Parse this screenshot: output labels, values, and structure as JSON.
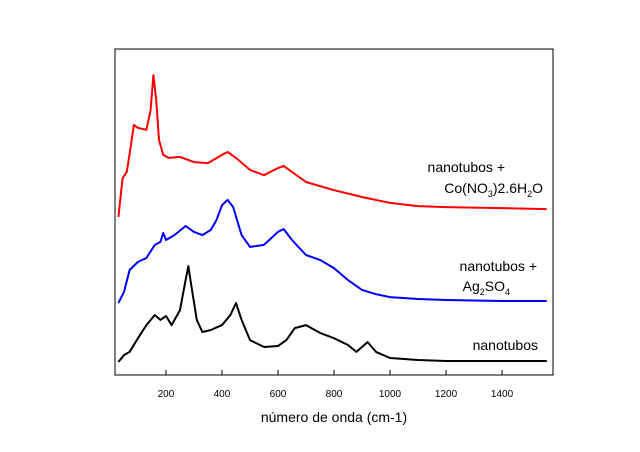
{
  "chart_data": {
    "type": "line",
    "xlabel": "número de onda (cm-1)",
    "xlim": [
      18,
      1582
    ],
    "xticks": [
      200,
      400,
      600,
      800,
      1000,
      1200,
      1400
    ],
    "ylim": [
      0,
      100
    ],
    "series": [
      {
        "color": "#ff0000",
        "label_lines": [
          [
            {
              "text": "nanotubos +"
            }
          ],
          [
            {
              "text": "Co(NO"
            },
            {
              "text": "3",
              "sub": true
            },
            {
              "text": ")2.6H"
            },
            {
              "text": "2",
              "sub": true
            },
            {
              "text": "O"
            }
          ]
        ],
        "x": [
          30,
          45,
          60,
          75,
          85,
          100,
          130,
          145,
          155,
          165,
          175,
          190,
          210,
          250,
          300,
          350,
          400,
          420,
          450,
          500,
          550,
          600,
          620,
          650,
          700,
          800,
          900,
          1000,
          1100,
          1200,
          1400,
          1560
        ],
        "values": [
          48.5,
          60.4,
          62.3,
          70.6,
          76.7,
          75.8,
          75.2,
          81.3,
          92.0,
          84.4,
          72.1,
          67.5,
          66.6,
          66.9,
          65.3,
          65.0,
          67.5,
          68.4,
          66.6,
          62.9,
          61.3,
          63.5,
          64.1,
          62.3,
          59.2,
          56.7,
          54.6,
          52.8,
          51.8,
          51.5,
          51.2,
          50.9
        ]
      },
      {
        "color": "#0000ff",
        "label_lines": [
          [
            {
              "text": "nanotubos +"
            }
          ],
          [
            {
              "text": "Ag"
            },
            {
              "text": "2",
              "sub": true
            },
            {
              "text": "SO"
            },
            {
              "text": "4",
              "sub": true
            }
          ]
        ],
        "x": [
          30,
          50,
          70,
          100,
          130,
          160,
          180,
          190,
          200,
          230,
          270,
          300,
          330,
          360,
          380,
          400,
          420,
          440,
          470,
          500,
          550,
          600,
          620,
          650,
          700,
          750,
          800,
          850,
          900,
          950,
          1000,
          1100,
          1200,
          1400,
          1560
        ],
        "values": [
          22.1,
          25.5,
          32.2,
          34.7,
          35.9,
          39.9,
          40.8,
          43.6,
          41.4,
          42.9,
          45.7,
          43.9,
          42.9,
          44.5,
          47.5,
          52.1,
          53.7,
          51.5,
          42.9,
          39.3,
          39.9,
          43.9,
          44.8,
          41.4,
          36.8,
          35.3,
          32.8,
          29.1,
          26.1,
          24.8,
          23.9,
          23.3,
          23.0,
          22.7,
          22.7
        ]
      },
      {
        "color": "#000000",
        "label_lines": [
          [
            {
              "text": "nanotubos"
            }
          ]
        ],
        "x": [
          30,
          50,
          70,
          100,
          130,
          160,
          180,
          200,
          220,
          250,
          270,
          280,
          290,
          310,
          330,
          360,
          400,
          430,
          450,
          470,
          500,
          550,
          600,
          630,
          660,
          700,
          750,
          800,
          850,
          880,
          920,
          950,
          1000,
          1100,
          1200,
          1400,
          1560
        ],
        "values": [
          4.0,
          6.1,
          7.1,
          11.3,
          15.3,
          18.4,
          16.9,
          18.1,
          15.3,
          19.9,
          29.1,
          33.4,
          27.6,
          16.9,
          13.2,
          13.8,
          15.3,
          18.4,
          22.1,
          16.9,
          10.7,
          8.6,
          8.9,
          10.7,
          14.4,
          15.3,
          12.9,
          11.3,
          9.2,
          7.1,
          10.1,
          7.1,
          5.2,
          4.6,
          4.3,
          4.3,
          4.3
        ]
      }
    ]
  }
}
